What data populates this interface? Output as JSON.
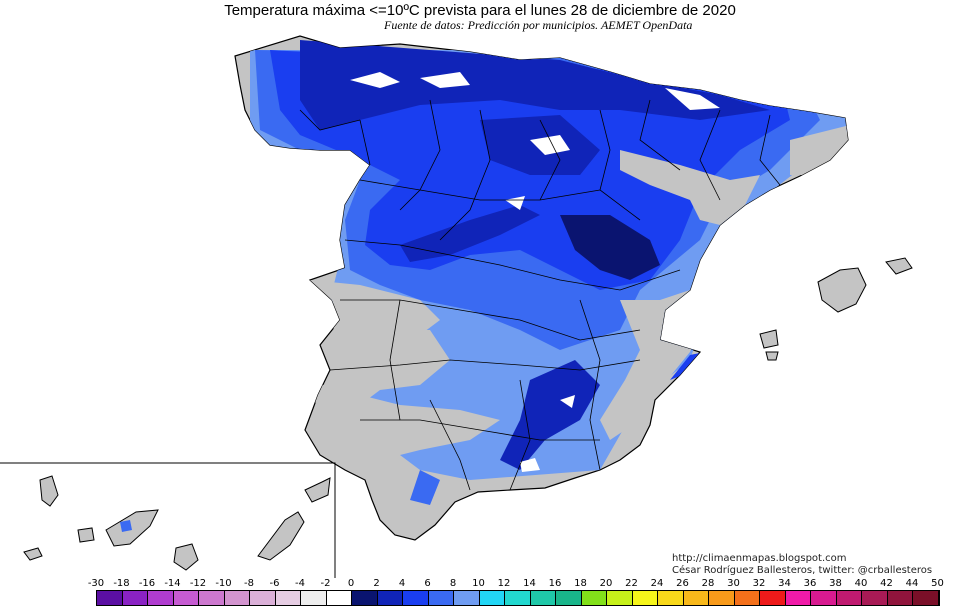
{
  "title": "Temperatura máxima <=10ºC prevista para el lunes 28 de diciembre de 2020",
  "subtitle": "Fuente de datos: Predicción por municipios. AEMET OpenData",
  "credits": {
    "url": "http://climaenmapas.blogspot.com",
    "author": "César Rodríguez Ballesteros, twitter: @crballesteros"
  },
  "legend": {
    "ticks": [
      "-30",
      "-18",
      "-16",
      "-14",
      "-12",
      "-10",
      "-8",
      "-6",
      "-4",
      "-2",
      "0",
      "2",
      "4",
      "6",
      "8",
      "10",
      "12",
      "14",
      "16",
      "18",
      "20",
      "22",
      "24",
      "26",
      "28",
      "30",
      "32",
      "34",
      "36",
      "38",
      "40",
      "42",
      "44",
      "50"
    ],
    "colors": [
      "#5b0fa3",
      "#8a22c4",
      "#b03cd0",
      "#c65bd2",
      "#cd78cf",
      "#d394cf",
      "#dbb0d8",
      "#e6cde3",
      "#eeeeee",
      "#ffffff",
      "#0a1470",
      "#1024b8",
      "#1a3ef0",
      "#3a6af2",
      "#6f9cf2",
      "#22d6f5",
      "#22d8cf",
      "#1fc8a8",
      "#19b58a",
      "#82e01a",
      "#c6f01a",
      "#f6f51a",
      "#f8d81a",
      "#f8b81a",
      "#f89a1a",
      "#f4701a",
      "#ee1a1a",
      "#f01aa8",
      "#d81a90",
      "#c01a70",
      "#a81a55",
      "#90143c",
      "#7a0f28"
    ]
  },
  "colors": {
    "land_default": "#c4c4c4",
    "cold_light": "#6f9cf2",
    "cold_mid": "#3a6af2",
    "cold_deep": "#1a3ef0",
    "cold_deeper": "#1024b8",
    "cold_darkest": "#0a1470",
    "snow": "#ffffff",
    "border": "#000000"
  }
}
